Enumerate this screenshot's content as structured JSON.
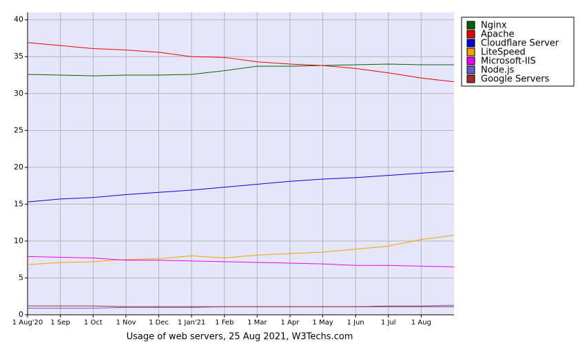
{
  "chart_data": {
    "type": "line",
    "title": "Usage of web servers, 25 Aug 2021, W3Techs.com",
    "categories": [
      "1 Aug'20",
      "1 Sep",
      "1 Oct",
      "1 Nov",
      "1 Dec",
      "1 Jan'21",
      "1 Feb",
      "1 Mar",
      "1 Apr",
      "1 May",
      "1 Jun",
      "1 Jul",
      "1 Aug",
      null
    ],
    "series": [
      {
        "name": "Nginx",
        "color": "#006400",
        "values": [
          32.6,
          32.5,
          32.4,
          32.5,
          32.5,
          32.6,
          33.1,
          33.7,
          33.7,
          33.8,
          33.9,
          34.0,
          33.9,
          33.9
        ]
      },
      {
        "name": "Apache",
        "color": "#ee0000",
        "values": [
          36.9,
          36.5,
          36.1,
          35.9,
          35.6,
          35.0,
          34.9,
          34.3,
          34.0,
          33.8,
          33.4,
          32.8,
          32.1,
          31.6
        ]
      },
      {
        "name": "Cloudflare Server",
        "color": "#0000dd",
        "values": [
          15.3,
          15.7,
          15.9,
          16.3,
          16.6,
          16.9,
          17.3,
          17.7,
          18.1,
          18.4,
          18.6,
          18.9,
          19.2,
          19.5
        ]
      },
      {
        "name": "LiteSpeed",
        "color": "#f4a000",
        "values": [
          6.8,
          7.1,
          7.2,
          7.5,
          7.6,
          8.0,
          7.7,
          8.1,
          8.3,
          8.5,
          8.9,
          9.3,
          10.2,
          10.8
        ]
      },
      {
        "name": "Microsoft-IIS",
        "color": "#ee00ee",
        "values": [
          7.9,
          7.8,
          7.7,
          7.4,
          7.4,
          7.3,
          7.2,
          7.1,
          7.0,
          6.9,
          6.7,
          6.7,
          6.6,
          6.5
        ]
      },
      {
        "name": "Node.js",
        "color": "#6a5acd",
        "values": [
          0.9,
          0.9,
          0.9,
          1.0,
          1.0,
          1.0,
          1.1,
          1.1,
          1.1,
          1.1,
          1.1,
          1.2,
          1.2,
          1.3
        ]
      },
      {
        "name": "Google Servers",
        "color": "#a52a2a",
        "values": [
          1.2,
          1.2,
          1.2,
          1.1,
          1.1,
          1.1,
          1.1,
          1.1,
          1.1,
          1.1,
          1.1,
          1.1,
          1.1,
          1.1
        ]
      }
    ],
    "ylim": [
      0,
      41
    ],
    "yticks": [
      0,
      5,
      10,
      15,
      20,
      25,
      30,
      35,
      40
    ],
    "grid": true,
    "legend": "right"
  }
}
